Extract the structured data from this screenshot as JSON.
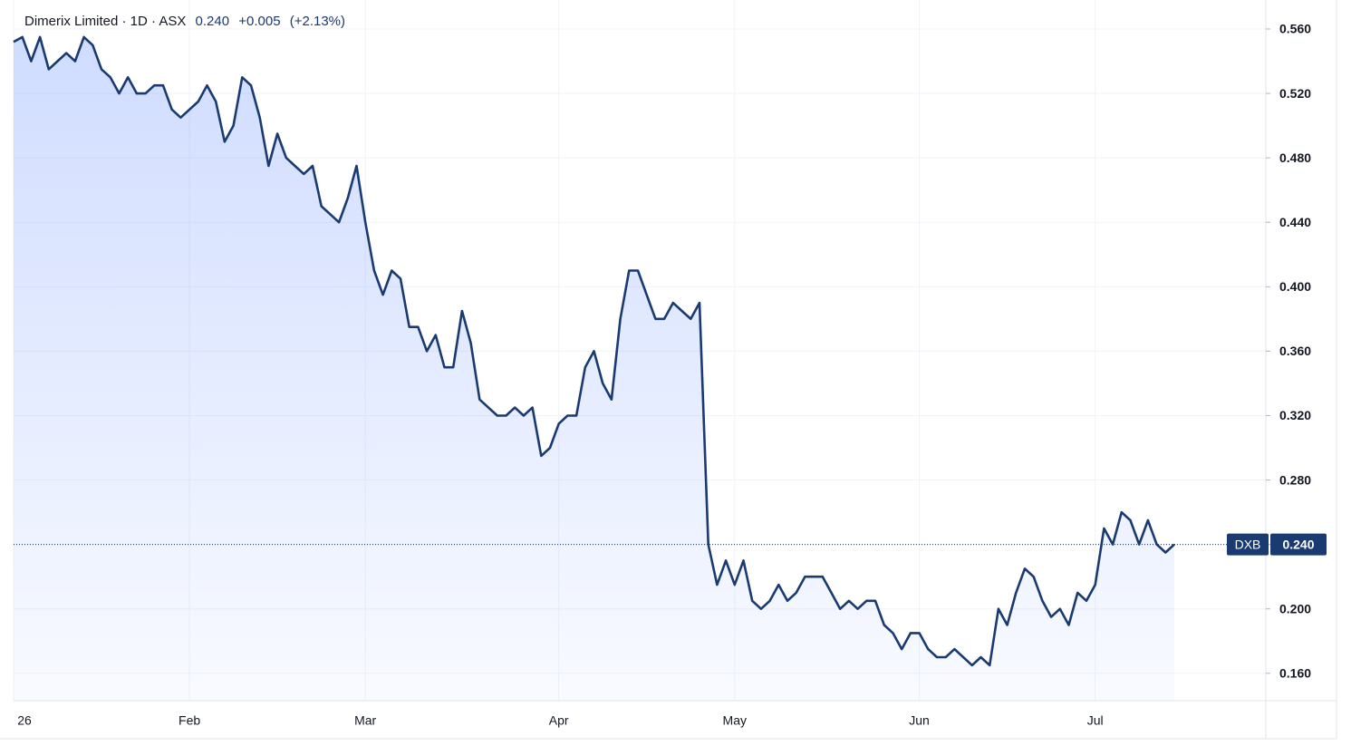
{
  "chart_data": {
    "type": "area",
    "title": "Dimerix Limited · 1D · ASX",
    "price": "0.240",
    "change": "+0.005",
    "change_pct": "(+2.13%)",
    "symbol": "DXB",
    "color": "#1a3a72",
    "ylim": [
      0.143,
      0.578
    ],
    "yticks": [
      {
        "value": 0.16,
        "label": "0.160"
      },
      {
        "value": 0.2,
        "label": "0.200"
      },
      {
        "value": 0.24,
        "label": "0.240"
      },
      {
        "value": 0.28,
        "label": "0.280"
      },
      {
        "value": 0.32,
        "label": "0.320"
      },
      {
        "value": 0.36,
        "label": "0.360"
      },
      {
        "value": 0.4,
        "label": "0.400"
      },
      {
        "value": 0.44,
        "label": "0.440"
      },
      {
        "value": 0.48,
        "label": "0.480"
      },
      {
        "value": 0.52,
        "label": "0.520"
      },
      {
        "value": 0.56,
        "label": "0.560"
      }
    ],
    "grid": true,
    "categories": [
      "26",
      null,
      null,
      null,
      null,
      null,
      null,
      null,
      null,
      null,
      null,
      null,
      null,
      null,
      null,
      null,
      null,
      null,
      null,
      null,
      "Feb",
      null,
      null,
      null,
      null,
      null,
      null,
      null,
      null,
      null,
      null,
      null,
      null,
      null,
      null,
      null,
      null,
      null,
      null,
      null,
      "Mar",
      null,
      null,
      null,
      null,
      null,
      null,
      null,
      null,
      null,
      null,
      null,
      null,
      null,
      null,
      null,
      null,
      null,
      null,
      null,
      null,
      null,
      "Apr",
      null,
      null,
      null,
      null,
      null,
      null,
      null,
      null,
      null,
      null,
      null,
      null,
      null,
      null,
      null,
      null,
      null,
      null,
      null,
      "May",
      null,
      null,
      null,
      null,
      null,
      null,
      null,
      null,
      null,
      null,
      null,
      null,
      null,
      null,
      null,
      null,
      null,
      null,
      null,
      null,
      "Jun",
      null,
      null,
      null,
      null,
      null,
      null,
      null,
      null,
      null,
      null,
      null,
      null,
      null,
      null,
      null,
      null,
      null,
      null,
      null,
      "Jul",
      null,
      null,
      null,
      null,
      null,
      null,
      null,
      null,
      null
    ],
    "values": [
      0.552,
      0.555,
      0.54,
      0.555,
      0.535,
      0.54,
      0.545,
      0.54,
      0.555,
      0.55,
      0.535,
      0.53,
      0.52,
      0.53,
      0.52,
      0.52,
      0.525,
      0.525,
      0.51,
      0.505,
      0.51,
      0.515,
      0.525,
      0.515,
      0.49,
      0.5,
      0.53,
      0.525,
      0.505,
      0.475,
      0.495,
      0.48,
      0.475,
      0.47,
      0.475,
      0.45,
      0.445,
      0.44,
      0.455,
      0.475,
      0.44,
      0.41,
      0.395,
      0.41,
      0.405,
      0.375,
      0.375,
      0.36,
      0.37,
      0.35,
      0.35,
      0.385,
      0.365,
      0.33,
      0.325,
      0.32,
      0.32,
      0.325,
      0.32,
      0.325,
      0.295,
      0.3,
      0.315,
      0.32,
      0.32,
      0.35,
      0.36,
      0.34,
      0.33,
      0.38,
      0.41,
      0.41,
      0.395,
      0.38,
      0.38,
      0.39,
      0.385,
      0.38,
      0.39,
      0.24,
      0.215,
      0.23,
      0.215,
      0.23,
      0.205,
      0.2,
      0.205,
      0.215,
      0.205,
      0.21,
      0.22,
      0.22,
      0.22,
      0.21,
      0.2,
      0.205,
      0.2,
      0.205,
      0.205,
      0.19,
      0.185,
      0.175,
      0.185,
      0.185,
      0.175,
      0.17,
      0.17,
      0.175,
      0.17,
      0.165,
      0.17,
      0.165,
      0.2,
      0.19,
      0.21,
      0.225,
      0.22,
      0.205,
      0.195,
      0.2,
      0.19,
      0.21,
      0.205,
      0.215,
      0.25,
      0.24,
      0.26,
      0.255,
      0.24,
      0.255,
      0.24,
      0.235,
      0.24
    ]
  }
}
